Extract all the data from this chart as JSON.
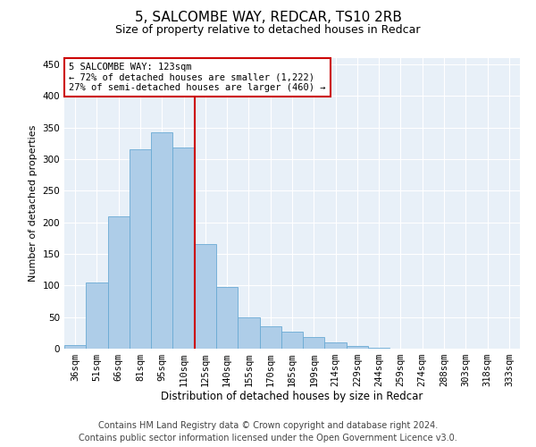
{
  "title": "5, SALCOMBE WAY, REDCAR, TS10 2RB",
  "subtitle": "Size of property relative to detached houses in Redcar",
  "xlabel": "Distribution of detached houses by size in Redcar",
  "ylabel": "Number of detached properties",
  "categories": [
    "36sqm",
    "51sqm",
    "66sqm",
    "81sqm",
    "95sqm",
    "110sqm",
    "125sqm",
    "140sqm",
    "155sqm",
    "170sqm",
    "185sqm",
    "199sqm",
    "214sqm",
    "229sqm",
    "244sqm",
    "259sqm",
    "274sqm",
    "288sqm",
    "303sqm",
    "318sqm",
    "333sqm"
  ],
  "values": [
    5,
    105,
    210,
    315,
    343,
    318,
    165,
    97,
    50,
    35,
    27,
    19,
    10,
    4,
    1,
    0,
    0,
    0,
    0,
    0,
    0
  ],
  "bar_color": "#aecde8",
  "bar_edge_color": "#6aaad4",
  "vline_color": "#cc0000",
  "annotation_text": "5 SALCOMBE WAY: 123sqm\n← 72% of detached houses are smaller (1,222)\n27% of semi-detached houses are larger (460) →",
  "annotation_box_color": "#ffffff",
  "annotation_box_edge_color": "#cc0000",
  "footer_line1": "Contains HM Land Registry data © Crown copyright and database right 2024.",
  "footer_line2": "Contains public sector information licensed under the Open Government Licence v3.0.",
  "background_color": "#e8f0f8",
  "ylim": [
    0,
    460
  ],
  "yticks": [
    0,
    50,
    100,
    150,
    200,
    250,
    300,
    350,
    400,
    450
  ],
  "title_fontsize": 11,
  "subtitle_fontsize": 9,
  "tick_fontsize": 7.5,
  "ylabel_fontsize": 8,
  "xlabel_fontsize": 8.5,
  "footer_fontsize": 7,
  "annotation_fontsize": 7.5
}
